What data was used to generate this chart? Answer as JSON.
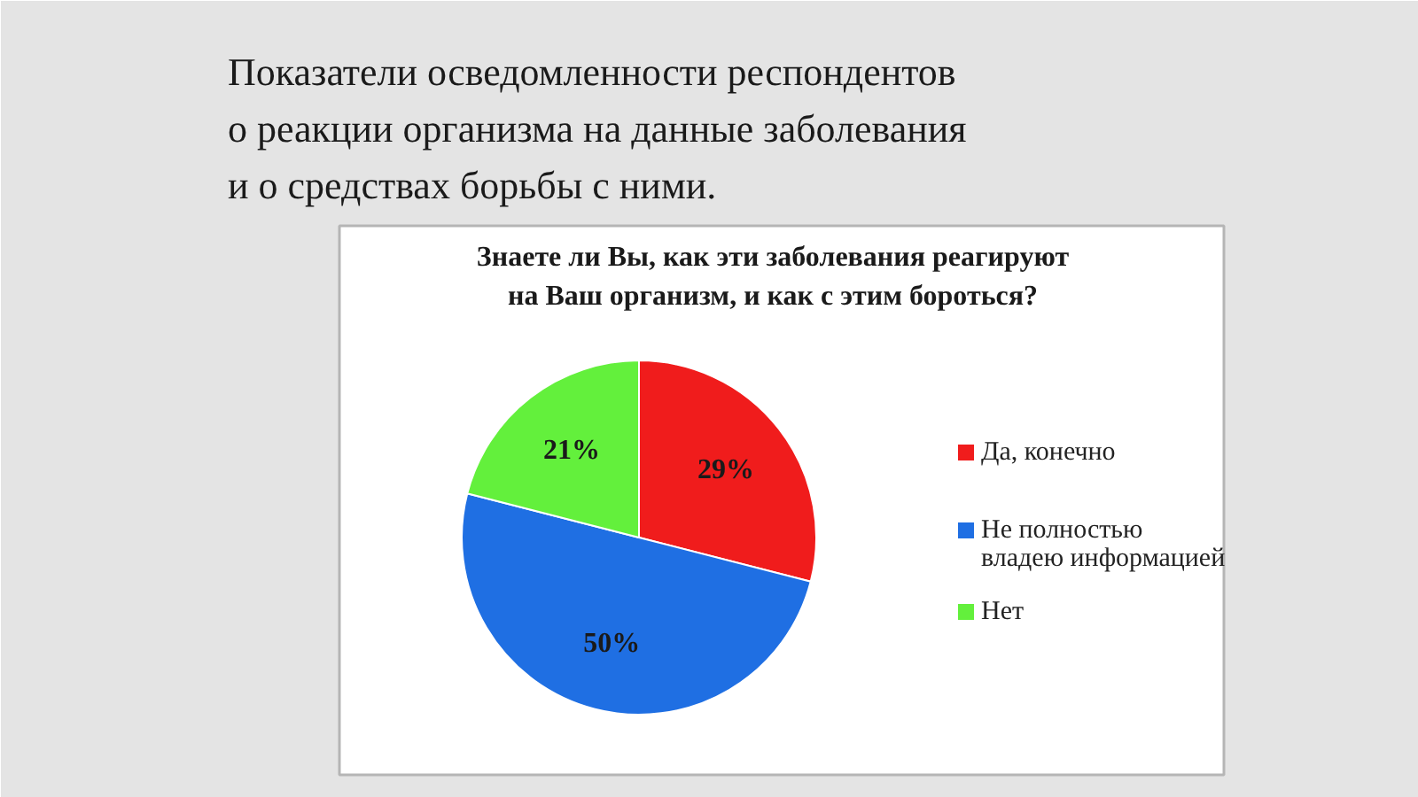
{
  "chart_data": {
    "type": "pie",
    "title": "Показатели осведомленности респондентов\nо реакции организма на данные заболевания\nи о средствах борьбы с ними.",
    "subtitle": "Знаете ли Вы, как эти заболевания реагируют\nна Ваш организм, и как с этим бороться?",
    "categories": [
      "Да, конечно",
      "Не полностью владею информацией",
      "Нет"
    ],
    "values": [
      29,
      50,
      21
    ],
    "colors": [
      "#f01c1c",
      "#1f6fe3",
      "#63f03c"
    ],
    "value_labels": [
      "29%",
      "50%",
      "21%"
    ],
    "legend": "right"
  }
}
